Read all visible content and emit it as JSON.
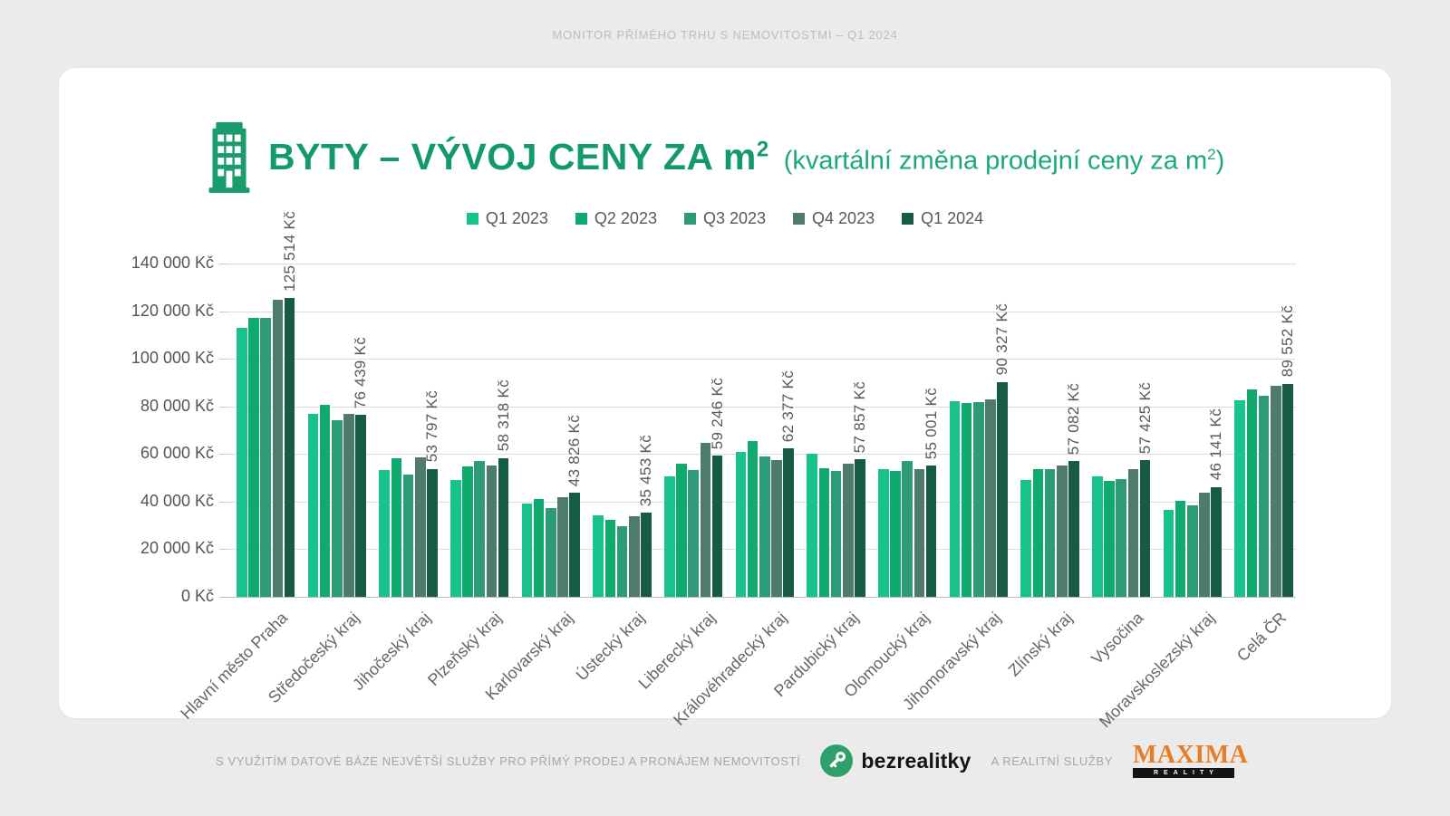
{
  "page": {
    "background": "#ebebeb",
    "card_background": "#ffffff",
    "top_note": "MONITOR PŘÍMÉHO TRHU S NEMOVITOSTMI – Q1 2024"
  },
  "header": {
    "title_main": "BYTY – VÝVOJ CENY ZA m",
    "title_sup": "2",
    "subtitle_main": "(kvartální změna prodejní ceny za m",
    "subtitle_sup": "2",
    "subtitle_close": ")",
    "accent_color": "#129a6b"
  },
  "chart_data": {
    "type": "bar",
    "title": "BYTY – VÝVOJ CENY ZA m² (kvartální změna prodejní ceny za m²)",
    "xlabel": "",
    "ylabel": "",
    "unit": "Kč",
    "ylim": [
      0,
      140000
    ],
    "ytick_step": 20000,
    "ytick_labels": [
      "0 Kč",
      "20 000 Kč",
      "40 000 Kč",
      "60 000 Kč",
      "80 000 Kč",
      "100 000 Kč",
      "120 000 Kč",
      "140 000 Kč"
    ],
    "grid": true,
    "legend_position": "top",
    "categories": [
      "Hlavní město Praha",
      "Středočeský kraj",
      "Jihočeský kraj",
      "Plzeňský kraj",
      "Karlovarský kraj",
      "Ústecký kraj",
      "Liberecký kraj",
      "Královéhradecký kraj",
      "Pardubický kraj",
      "Olomoucký kraj",
      "Jihomoravský kraj",
      "Zlínský kraj",
      "Vysočina",
      "Moravskoslezský kraj",
      "Celá ČR"
    ],
    "series": [
      {
        "name": "Q1 2023",
        "color": "#17c28c",
        "values": [
          113000,
          76700,
          53300,
          49200,
          39200,
          34400,
          50700,
          61000,
          60200,
          53700,
          82000,
          49000,
          50700,
          36700,
          82500
        ]
      },
      {
        "name": "Q2 2023",
        "color": "#10aa6e",
        "values": [
          117100,
          80800,
          58200,
          54600,
          41100,
          32500,
          56000,
          65500,
          54000,
          52700,
          81300,
          53700,
          48800,
          40500,
          87200
        ]
      },
      {
        "name": "Q3 2023",
        "color": "#2d9b78",
        "values": [
          117100,
          74300,
          51400,
          56900,
          37200,
          29500,
          53300,
          58900,
          52700,
          56900,
          81800,
          53500,
          49600,
          38500,
          84300
        ]
      },
      {
        "name": "Q4 2023",
        "color": "#4d7c6b",
        "values": [
          124700,
          76900,
          58500,
          55300,
          41900,
          33700,
          64500,
          57600,
          55900,
          53700,
          83000,
          55000,
          53700,
          43800,
          88500
        ]
      },
      {
        "name": "Q1 2024",
        "color": "#155c42",
        "values": [
          125514,
          76439,
          53797,
          58318,
          43826,
          35453,
          59246,
          62377,
          57857,
          55001,
          90327,
          57082,
          57425,
          46141,
          89552
        ],
        "value_labels": [
          "125 514 Kč",
          "76 439 Kč",
          "53 797 Kč",
          "58 318 Kč",
          "43 826 Kč",
          "35 453 Kč",
          "59 246 Kč",
          "62 377 Kč",
          "57 857 Kč",
          "55 001 Kč",
          "90 327 Kč",
          "57 082 Kč",
          "57 425 Kč",
          "46 141 Kč",
          "89 552 Kč"
        ]
      }
    ]
  },
  "footer": {
    "source_text": "S VYUŽITÍM DATOVÉ BÁZE NEJVĚTŠÍ SLUŽBY PRO PŘÍMÝ PRODEJ A PRONÁJEM NEMOVITOSTÍ",
    "bezrealitky_label": "bezrealitky",
    "bezrealitky_green": "#2fa06b",
    "connector_text": "A REALITNÍ SLUŽBY",
    "maxima_title": "MAXIMA",
    "maxima_subtitle": "REALITY",
    "maxima_color": "#e87d26"
  }
}
